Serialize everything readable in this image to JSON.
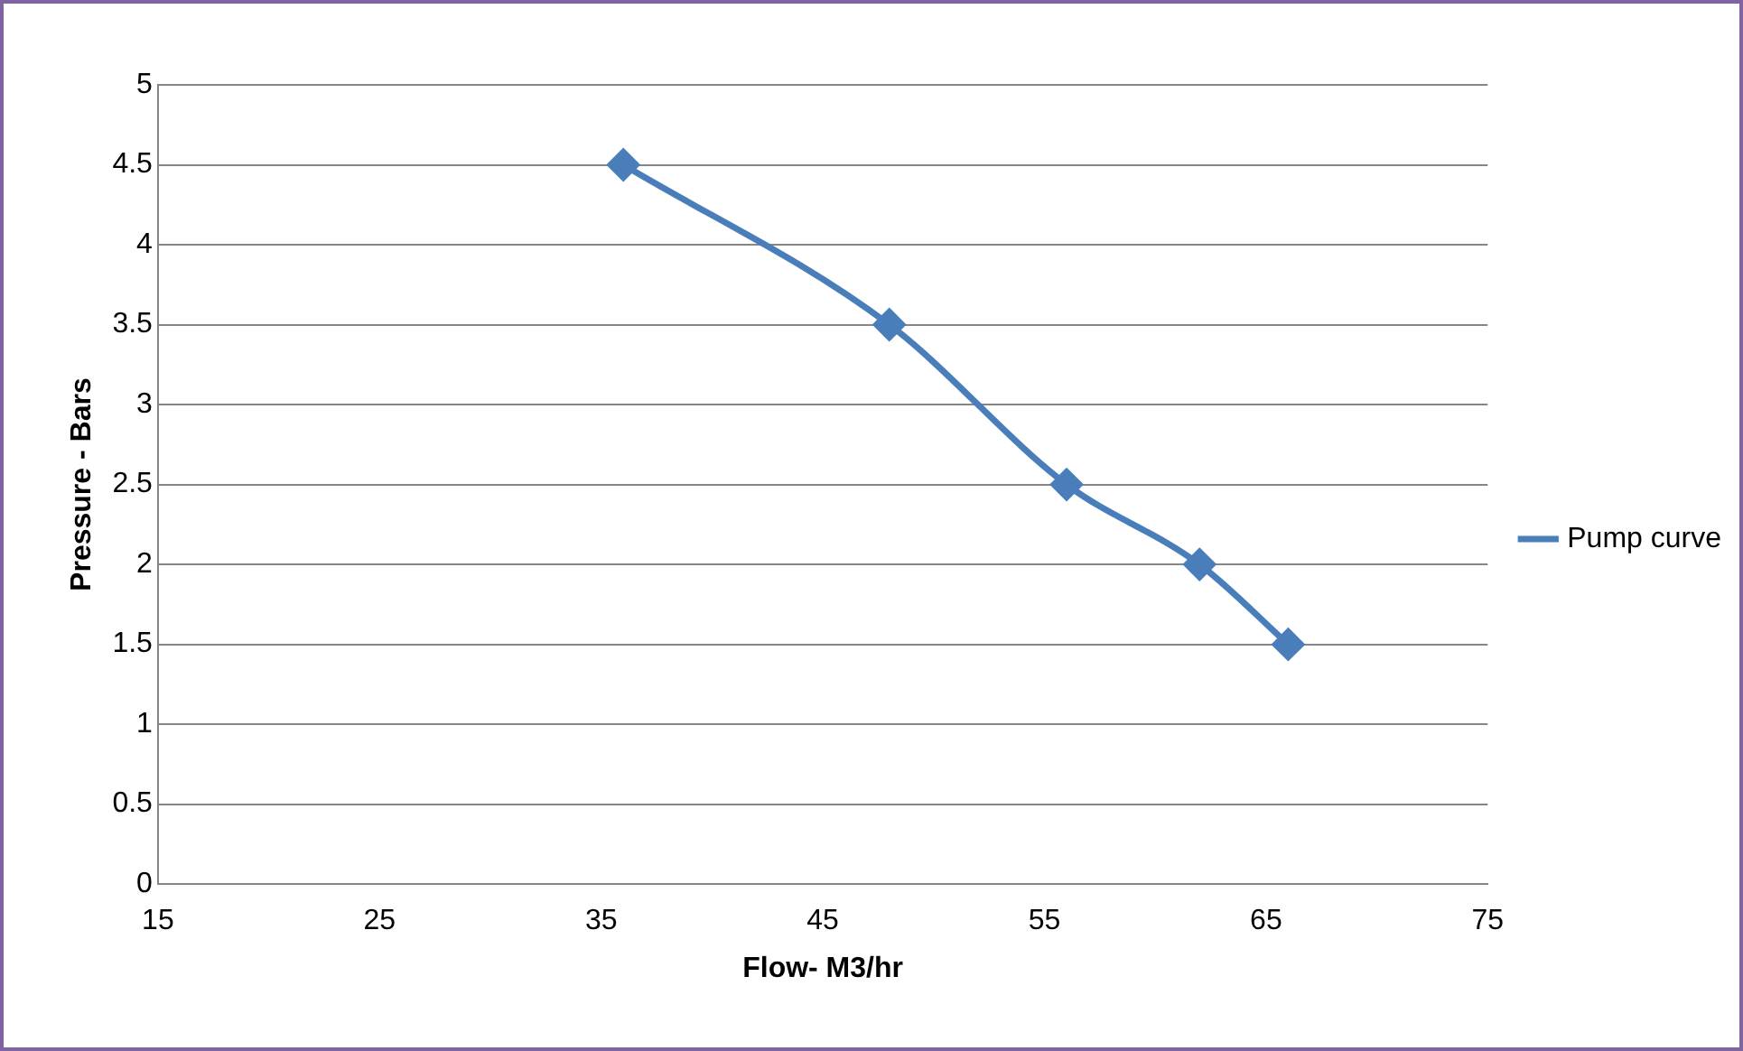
{
  "chart_data": {
    "type": "line",
    "xlabel": "Flow- M3/hr",
    "ylabel": "Pressure - Bars",
    "x": [
      36,
      48,
      56,
      62,
      66
    ],
    "series": [
      {
        "name": "Pump curve",
        "color": "#4a7ebb",
        "values": [
          4.5,
          3.5,
          2.5,
          2,
          1.5
        ]
      }
    ],
    "xlim": [
      15,
      75
    ],
    "xticks": [
      15,
      25,
      35,
      45,
      55,
      65,
      75
    ],
    "ylim": [
      0,
      5
    ],
    "yticks": [
      0,
      0.5,
      1,
      1.5,
      2,
      2.5,
      3,
      3.5,
      4,
      4.5,
      5
    ],
    "grid": "y",
    "legend": "right",
    "marker": "diamond",
    "line_style": "solid"
  }
}
